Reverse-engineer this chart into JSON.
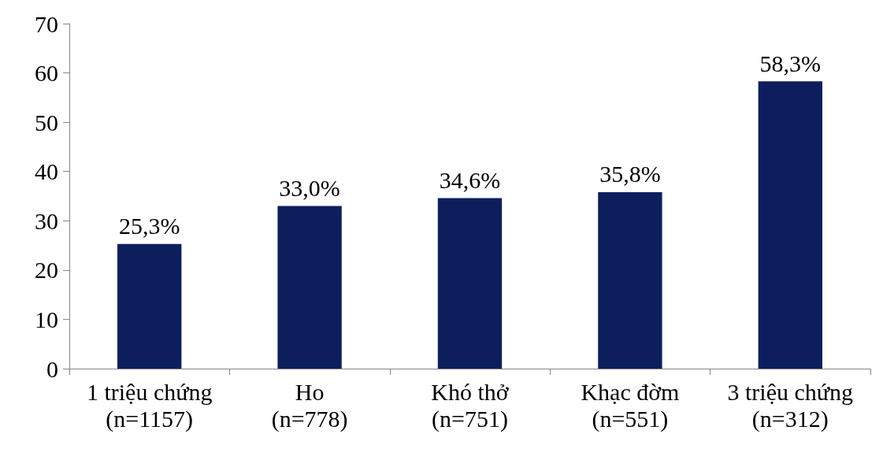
{
  "chart_data": {
    "type": "bar",
    "categories": [
      "1 triệu chứng\n(n=1157)",
      "Ho\n(n=778)",
      "Khó thở\n(n=751)",
      "Khạc đờm\n(n=551)",
      "3 triệu chứng\n(n=312)"
    ],
    "values": [
      25.3,
      33.0,
      34.6,
      35.8,
      58.3
    ],
    "value_labels": [
      "25,3%",
      "33,0%",
      "34,6%",
      "35,8%",
      "58,3%"
    ],
    "color": "#0c1f5c",
    "ylim": [
      0,
      70
    ],
    "yticks": [
      0,
      10,
      20,
      30,
      40,
      50,
      60,
      70
    ]
  }
}
